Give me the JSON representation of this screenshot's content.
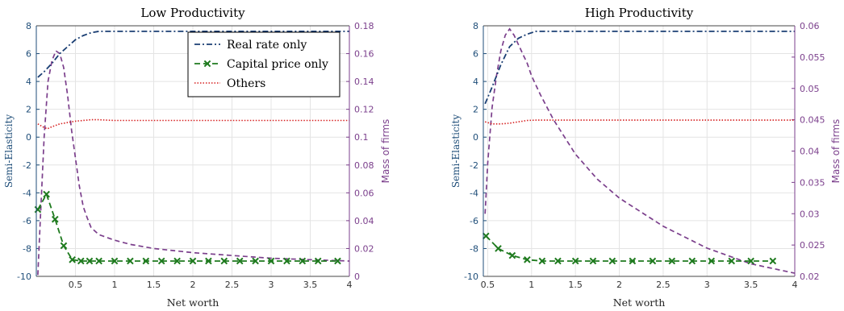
{
  "colors": {
    "real_rate": "#1a3e73",
    "capital_price": "#1e7a1e",
    "others": "#d62020",
    "mass": "#7b3f8c",
    "left_axis": "#1f4e79",
    "grid": "#e4e4e4"
  },
  "chart_data": [
    {
      "type": "line",
      "title": "Low Productivity",
      "xlabel": "Net worth",
      "ylabel_left": "Semi-Elasticity",
      "ylabel_right": "Mass of firms",
      "xlim": [
        0,
        4
      ],
      "ylim_left": [
        -10,
        8
      ],
      "ylim_right": [
        0,
        0.18
      ],
      "xticks": [
        "0.5",
        "1",
        "1.5",
        "2",
        "2.5",
        "3",
        "3.5",
        "4"
      ],
      "yticks_left": [
        "-10",
        "-8",
        "-6",
        "-4",
        "-2",
        "0",
        "2",
        "4",
        "6",
        "8"
      ],
      "yticks_right": [
        "0",
        "0.02",
        "0.04",
        "0.06",
        "0.08",
        "0.1",
        "0.12",
        "0.14",
        "0.16",
        "0.18"
      ],
      "grid": true,
      "legend_position": "top-right",
      "series": [
        {
          "name": "Real rate only",
          "axis": "left",
          "style": "dash-dot",
          "x": [
            0.02,
            0.1,
            0.2,
            0.3,
            0.4,
            0.5,
            0.6,
            0.7,
            0.8,
            0.9,
            1.0,
            1.5,
            2.0,
            2.5,
            3.0,
            3.5,
            4.0
          ],
          "y": [
            4.3,
            4.7,
            5.3,
            6.0,
            6.5,
            7.0,
            7.3,
            7.5,
            7.6,
            7.6,
            7.6,
            7.6,
            7.6,
            7.6,
            7.6,
            7.6,
            7.6
          ]
        },
        {
          "name": "Capital price only",
          "axis": "left",
          "style": "dashed-x",
          "x": [
            0.02,
            0.13,
            0.24,
            0.35,
            0.46,
            0.57,
            0.68,
            0.8,
            1.0,
            1.2,
            1.4,
            1.6,
            1.8,
            2.0,
            2.2,
            2.4,
            2.6,
            2.8,
            3.0,
            3.2,
            3.4,
            3.6,
            3.85
          ],
          "y": [
            -5.2,
            -4.1,
            -5.9,
            -7.8,
            -8.8,
            -8.9,
            -8.9,
            -8.9,
            -8.9,
            -8.9,
            -8.9,
            -8.9,
            -8.9,
            -8.9,
            -8.9,
            -8.9,
            -8.9,
            -8.9,
            -8.9,
            -8.9,
            -8.9,
            -8.9,
            -8.9
          ]
        },
        {
          "name": "Others",
          "axis": "left",
          "style": "dotted",
          "x": [
            0.02,
            0.08,
            0.14,
            0.2,
            0.3,
            0.4,
            0.5,
            0.6,
            0.7,
            0.8,
            0.9,
            1.0,
            1.5,
            2.0,
            2.5,
            3.0,
            3.5,
            4.0
          ],
          "y": [
            0.95,
            0.75,
            0.6,
            0.75,
            0.95,
            1.05,
            1.15,
            1.2,
            1.25,
            1.25,
            1.22,
            1.2,
            1.2,
            1.2,
            1.2,
            1.2,
            1.2,
            1.2
          ]
        },
        {
          "name": "",
          "axis": "right",
          "style": "dashed",
          "x": [
            0.02,
            0.05,
            0.1,
            0.15,
            0.2,
            0.25,
            0.3,
            0.35,
            0.4,
            0.45,
            0.5,
            0.55,
            0.6,
            0.65,
            0.7,
            0.8,
            1.0,
            1.2,
            1.5,
            2.0,
            2.5,
            3.0,
            3.5,
            4.0
          ],
          "y": [
            0.001,
            0.04,
            0.1,
            0.14,
            0.155,
            0.162,
            0.16,
            0.15,
            0.13,
            0.105,
            0.085,
            0.065,
            0.05,
            0.042,
            0.035,
            0.03,
            0.026,
            0.023,
            0.02,
            0.017,
            0.015,
            0.013,
            0.012,
            0.011
          ]
        }
      ]
    },
    {
      "type": "line",
      "title": "High Productivity",
      "xlabel": "Net worth",
      "ylabel_left": "Semi-Elasticity",
      "ylabel_right": "Mass of firms",
      "xlim": [
        0.45,
        4
      ],
      "ylim_left": [
        -10,
        8
      ],
      "ylim_right": [
        0.02,
        0.06
      ],
      "xticks": [
        "0.5",
        "1",
        "1.5",
        "2",
        "2.5",
        "3",
        "3.5",
        "4"
      ],
      "yticks_left": [
        "-10",
        "-8",
        "-6",
        "-4",
        "-2",
        "0",
        "2",
        "4",
        "6",
        "8"
      ],
      "yticks_right": [
        "0.02",
        "0.025",
        "0.03",
        "0.035",
        "0.04",
        "0.045",
        "0.05",
        "0.055",
        "0.06"
      ],
      "grid": true,
      "legend_position": "none",
      "series": [
        {
          "name": "Real rate only",
          "axis": "left",
          "style": "dash-dot",
          "x": [
            0.47,
            0.55,
            0.65,
            0.75,
            0.85,
            0.95,
            1.05,
            1.2,
            1.5,
            2.0,
            2.5,
            3.0,
            3.5,
            4.0
          ],
          "y": [
            2.4,
            3.6,
            5.2,
            6.5,
            7.1,
            7.4,
            7.6,
            7.6,
            7.6,
            7.6,
            7.6,
            7.6,
            7.6,
            7.6
          ]
        },
        {
          "name": "Capital price only",
          "axis": "left",
          "style": "dashed-x",
          "x": [
            0.48,
            0.62,
            0.78,
            0.95,
            1.12,
            1.3,
            1.5,
            1.7,
            1.92,
            2.15,
            2.38,
            2.6,
            2.83,
            3.05,
            3.28,
            3.5,
            3.75
          ],
          "y": [
            -7.1,
            -8.0,
            -8.5,
            -8.8,
            -8.9,
            -8.9,
            -8.9,
            -8.9,
            -8.9,
            -8.9,
            -8.9,
            -8.9,
            -8.9,
            -8.9,
            -8.9,
            -8.9,
            -8.9
          ]
        },
        {
          "name": "Others",
          "axis": "left",
          "style": "dotted",
          "x": [
            0.47,
            0.55,
            0.65,
            0.75,
            0.85,
            0.95,
            1.05,
            1.2,
            1.5,
            2.0,
            2.5,
            3.0,
            3.5,
            4.0
          ],
          "y": [
            1.1,
            0.95,
            0.95,
            1.0,
            1.1,
            1.2,
            1.22,
            1.22,
            1.22,
            1.22,
            1.22,
            1.22,
            1.22,
            1.22
          ]
        },
        {
          "name": "",
          "axis": "right",
          "style": "dashed",
          "x": [
            0.47,
            0.5,
            0.55,
            0.6,
            0.65,
            0.7,
            0.75,
            0.8,
            0.85,
            0.9,
            0.95,
            1.0,
            1.1,
            1.25,
            1.5,
            1.75,
            2.0,
            2.5,
            3.0,
            3.5,
            4.0
          ],
          "y": [
            0.03,
            0.038,
            0.047,
            0.052,
            0.056,
            0.0585,
            0.0595,
            0.0585,
            0.057,
            0.0555,
            0.054,
            0.052,
            0.049,
            0.045,
            0.0395,
            0.0355,
            0.0325,
            0.028,
            0.0245,
            0.022,
            0.0205
          ]
        }
      ]
    }
  ]
}
